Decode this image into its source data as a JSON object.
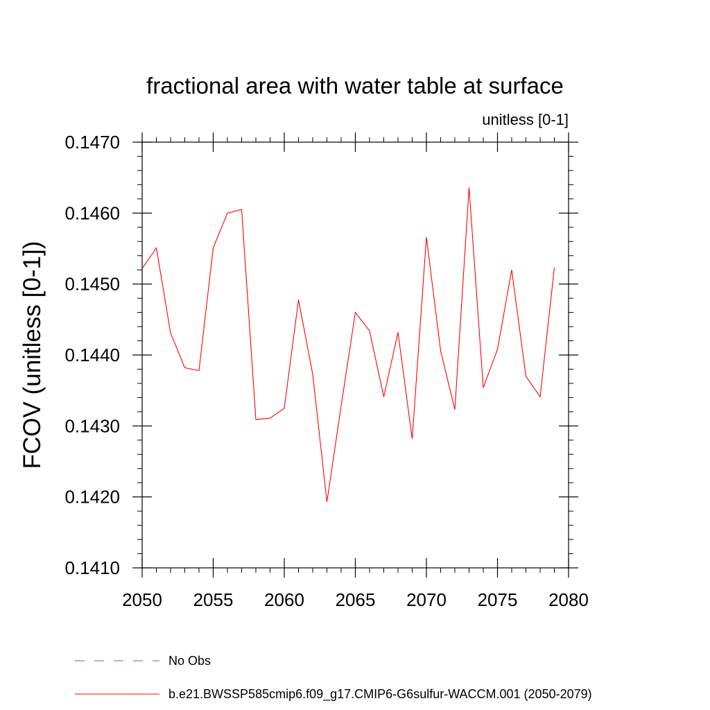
{
  "chart_data": {
    "type": "line",
    "title": "fractional area with water table at surface",
    "subtitle": "unitless [0-1]",
    "xlabel": "",
    "ylabel": "FCOV  (unitless [0-1])",
    "xlim": [
      2050,
      2080
    ],
    "ylim": [
      0.141,
      0.147
    ],
    "x_ticks": [
      2050,
      2055,
      2060,
      2065,
      2070,
      2075,
      2080
    ],
    "x_tick_labels": [
      "2050",
      "2055",
      "2060",
      "2065",
      "2070",
      "2075",
      "2080"
    ],
    "y_ticks": [
      0.141,
      0.142,
      0.143,
      0.144,
      0.145,
      0.146,
      0.147
    ],
    "y_tick_labels": [
      "0.1410",
      "0.1420",
      "0.1430",
      "0.1440",
      "0.1450",
      "0.1460",
      "0.1470"
    ],
    "grid": false,
    "legend_position": "bottom",
    "series": [
      {
        "name": "b.e21.BWSSP585cmip6.f09_g17.CMIP6-G6sulfur-WACCM.001 (2050-2079)",
        "color": "#ff0000",
        "style": "solid",
        "x": [
          2050,
          2051,
          2052,
          2053,
          2054,
          2055,
          2056,
          2057,
          2058,
          2059,
          2060,
          2061,
          2062,
          2063,
          2064,
          2065,
          2066,
          2067,
          2068,
          2069,
          2070,
          2071,
          2072,
          2073,
          2074,
          2075,
          2076,
          2077,
          2078,
          2079
        ],
        "y": [
          0.14522,
          0.14551,
          0.14431,
          0.14382,
          0.14378,
          0.14551,
          0.146,
          0.14605,
          0.14309,
          0.14311,
          0.14325,
          0.14478,
          0.14373,
          0.14193,
          0.14328,
          0.1446,
          0.14434,
          0.14341,
          0.14432,
          0.14282,
          0.14566,
          0.14406,
          0.14323,
          0.14636,
          0.14354,
          0.14408,
          0.1452,
          0.1437,
          0.14341,
          0.14523
        ]
      }
    ],
    "legend": [
      {
        "label": "No Obs",
        "color": "#6a5acd",
        "style": "dashed"
      },
      {
        "label": "b.e21.BWSSP585cmip6.f09_g17.CMIP6-G6sulfur-WACCM.001 (2050-2079)",
        "color": "#ff0000",
        "style": "solid"
      }
    ]
  }
}
